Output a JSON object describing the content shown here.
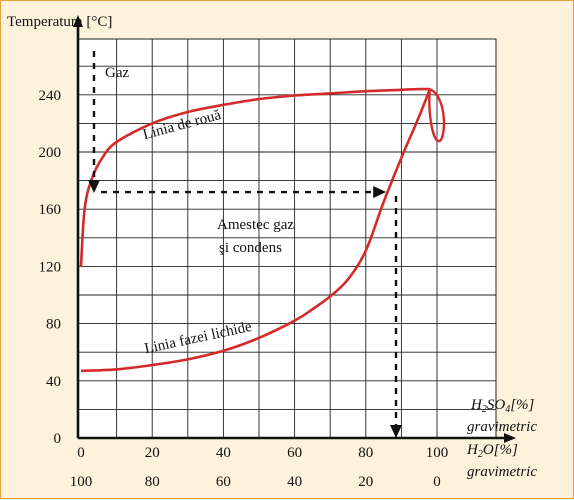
{
  "chart_data": {
    "type": "line",
    "ylabel": "Temperatura [°C]",
    "x_primary_label": [
      "H",
      "2",
      "SO",
      "4",
      "[%]"
    ],
    "x_primary_unit": "gravimetric",
    "x_secondary_label": [
      "H",
      "2",
      "O[%]"
    ],
    "x_secondary_unit": "gravimetric",
    "xlim": [
      0,
      100
    ],
    "ylim": [
      0,
      280
    ],
    "grid": true,
    "x_ticks": [
      0,
      20,
      40,
      60,
      80,
      100
    ],
    "x_ticks_secondary": [
      100,
      80,
      60,
      40,
      20,
      0
    ],
    "y_ticks": [
      0,
      40,
      80,
      120,
      160,
      200,
      240
    ],
    "series": [
      {
        "name": "Linia de rouă",
        "color": "#d42a2a",
        "x": [
          0,
          1,
          3,
          6,
          10,
          20,
          30,
          40,
          50,
          60,
          70,
          80,
          90,
          95,
          98
        ],
        "y": [
          120,
          160,
          181,
          196,
          207,
          220,
          228,
          233,
          237,
          239.5,
          241,
          242.5,
          243.5,
          244,
          244
        ]
      },
      {
        "name": "Linia fazei lichide",
        "color": "#d42a2a",
        "x": [
          0,
          10,
          20,
          30,
          40,
          50,
          60,
          65,
          70,
          75,
          80,
          85,
          90,
          95,
          98
        ],
        "y": [
          47,
          48,
          51,
          55,
          61,
          70,
          82,
          90,
          99,
          111,
          131,
          165,
          196,
          225,
          244
        ]
      }
    ],
    "annotations": {
      "gas_region": "Gaz",
      "mixture_line1": "Amestec gaz",
      "mixture_line2": "şi condens",
      "tie_line_T": 172,
      "tie_line_x_start": 3,
      "tie_line_x_end": 86
    }
  }
}
